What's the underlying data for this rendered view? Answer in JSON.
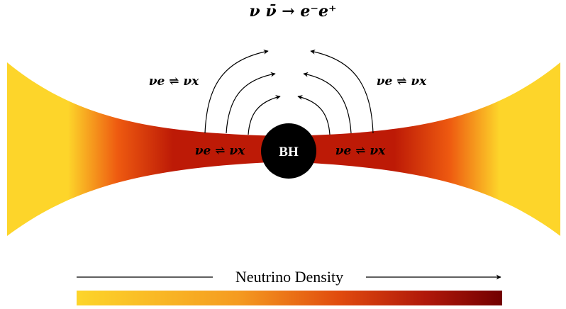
{
  "title": "ν ν̄ → e⁻e⁺",
  "black_hole": {
    "label": "BH"
  },
  "labels": {
    "upper_left": "νe ⇌ νx",
    "upper_right": "νe ⇌ νx",
    "disk_left": "νe ⇌ νx",
    "disk_right": "νe ⇌ νx"
  },
  "density_axis": {
    "label": "Neutrino Density"
  },
  "colors": {
    "low_density": "#fdd52a",
    "mid_density": "#ee5a10",
    "high_density": "#bd1a06",
    "max_density": "#720000",
    "black_hole": "#000000",
    "arrow": "#000000"
  }
}
